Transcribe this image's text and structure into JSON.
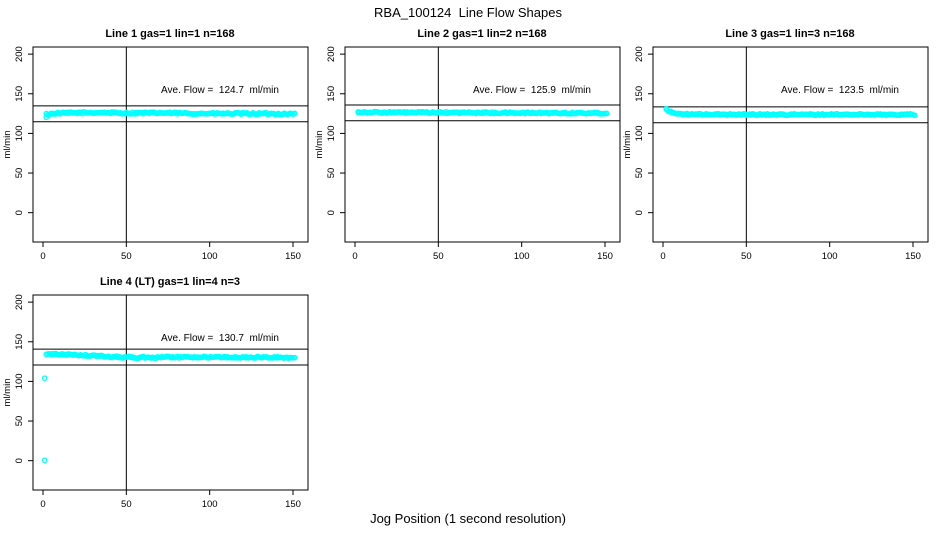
{
  "page_title": "RBA_100124  Line Flow Shapes",
  "xlabel": "Jog Position (1 second resolution)",
  "ylabel": "ml/min",
  "colors": {
    "points": "#00ffff",
    "axis": "#000000",
    "background": "#ffffff",
    "text": "#000000"
  },
  "chart_data": [
    {
      "type": "scatter",
      "title": "Line 1 gas=1 lin=1 n=168",
      "annotation": "Ave. Flow =  124.7  ml/min",
      "ave_flow": 124.7,
      "n": 168,
      "x_ticks": [
        0,
        50,
        100,
        150
      ],
      "y_ticks": [
        0,
        50,
        100,
        150,
        200
      ],
      "xlim": [
        -6,
        159
      ],
      "ylim": [
        -37,
        209
      ],
      "vline_x": 50,
      "hlines": [
        134.7,
        114.7
      ],
      "band": {
        "x_start": 2,
        "x_end": 151,
        "count": 168,
        "noise": 1.1,
        "anchors": [
          [
            2,
            124.2
          ],
          [
            8,
            125.4
          ],
          [
            20,
            126.0
          ],
          [
            35,
            126.3
          ],
          [
            50,
            125.6
          ],
          [
            70,
            125.9
          ],
          [
            90,
            125.2
          ],
          [
            110,
            125.0
          ],
          [
            130,
            124.9
          ],
          [
            151,
            124.6
          ]
        ]
      },
      "outliers": [
        [
          2,
          120.5
        ]
      ]
    },
    {
      "type": "scatter",
      "title": "Line 2 gas=1 lin=2 n=168",
      "annotation": "Ave. Flow =  125.9  ml/min",
      "ave_flow": 125.9,
      "n": 168,
      "x_ticks": [
        0,
        50,
        100,
        150
      ],
      "y_ticks": [
        0,
        50,
        100,
        150,
        200
      ],
      "xlim": [
        -6,
        159
      ],
      "ylim": [
        -37,
        209
      ],
      "vline_x": 50,
      "hlines": [
        135.9,
        115.9
      ],
      "band": {
        "x_start": 2,
        "x_end": 151,
        "count": 168,
        "noise": 1.0,
        "anchors": [
          [
            2,
            127.0
          ],
          [
            10,
            126.6
          ],
          [
            30,
            126.4
          ],
          [
            60,
            126.2
          ],
          [
            90,
            126.0
          ],
          [
            120,
            125.8
          ],
          [
            151,
            125.6
          ]
        ]
      },
      "outliers": [
        [
          2,
          127.2
        ]
      ]
    },
    {
      "type": "scatter",
      "title": "Line 3 gas=1 lin=3 n=168",
      "annotation": "Ave. Flow =  123.5  ml/min",
      "ave_flow": 123.5,
      "n": 168,
      "x_ticks": [
        0,
        50,
        100,
        150
      ],
      "y_ticks": [
        0,
        50,
        100,
        150,
        200
      ],
      "xlim": [
        -6,
        159
      ],
      "ylim": [
        -37,
        209
      ],
      "vline_x": 50,
      "hlines": [
        133.5,
        113.5
      ],
      "band": {
        "x_start": 2,
        "x_end": 151,
        "count": 168,
        "noise": 0.9,
        "anchors": [
          [
            2,
            130.5
          ],
          [
            3,
            128.5
          ],
          [
            5,
            126.5
          ],
          [
            8,
            125.2
          ],
          [
            12,
            124.4
          ],
          [
            20,
            124.0
          ],
          [
            60,
            123.9
          ],
          [
            100,
            123.8
          ],
          [
            151,
            123.8
          ]
        ]
      },
      "outliers": [
        [
          2,
          131.0
        ]
      ]
    },
    {
      "type": "scatter",
      "title": "Line 4 (LT) gas=1 lin=4 n=3",
      "annotation": "Ave. Flow =  130.7  ml/min",
      "ave_flow": 130.7,
      "n": 3,
      "x_ticks": [
        0,
        50,
        100,
        150
      ],
      "y_ticks": [
        0,
        50,
        100,
        150,
        200
      ],
      "xlim": [
        -6,
        159
      ],
      "ylim": [
        -37,
        209
      ],
      "vline_x": 50,
      "hlines": [
        140.7,
        120.7
      ],
      "band": {
        "x_start": 2,
        "x_end": 151,
        "count": 160,
        "noise": 1.0,
        "anchors": [
          [
            2,
            133.5
          ],
          [
            4,
            134.8
          ],
          [
            7,
            134.3
          ],
          [
            12,
            134.0
          ],
          [
            18,
            133.8
          ],
          [
            24,
            133.2
          ],
          [
            28,
            132.2
          ],
          [
            32,
            132.6
          ],
          [
            36,
            131.6
          ],
          [
            40,
            130.8
          ],
          [
            44,
            131.3
          ],
          [
            48,
            130.4
          ],
          [
            52,
            131.0
          ],
          [
            56,
            129.6
          ],
          [
            60,
            130.6
          ],
          [
            68,
            130.2
          ],
          [
            76,
            130.9
          ],
          [
            84,
            130.4
          ],
          [
            92,
            130.9
          ],
          [
            100,
            130.5
          ],
          [
            110,
            130.6
          ],
          [
            120,
            130.2
          ],
          [
            130,
            130.4
          ],
          [
            140,
            130.1
          ],
          [
            151,
            130.2
          ]
        ]
      },
      "outliers": [
        [
          1,
          0.5
        ],
        [
          1,
          104.0
        ]
      ]
    }
  ]
}
